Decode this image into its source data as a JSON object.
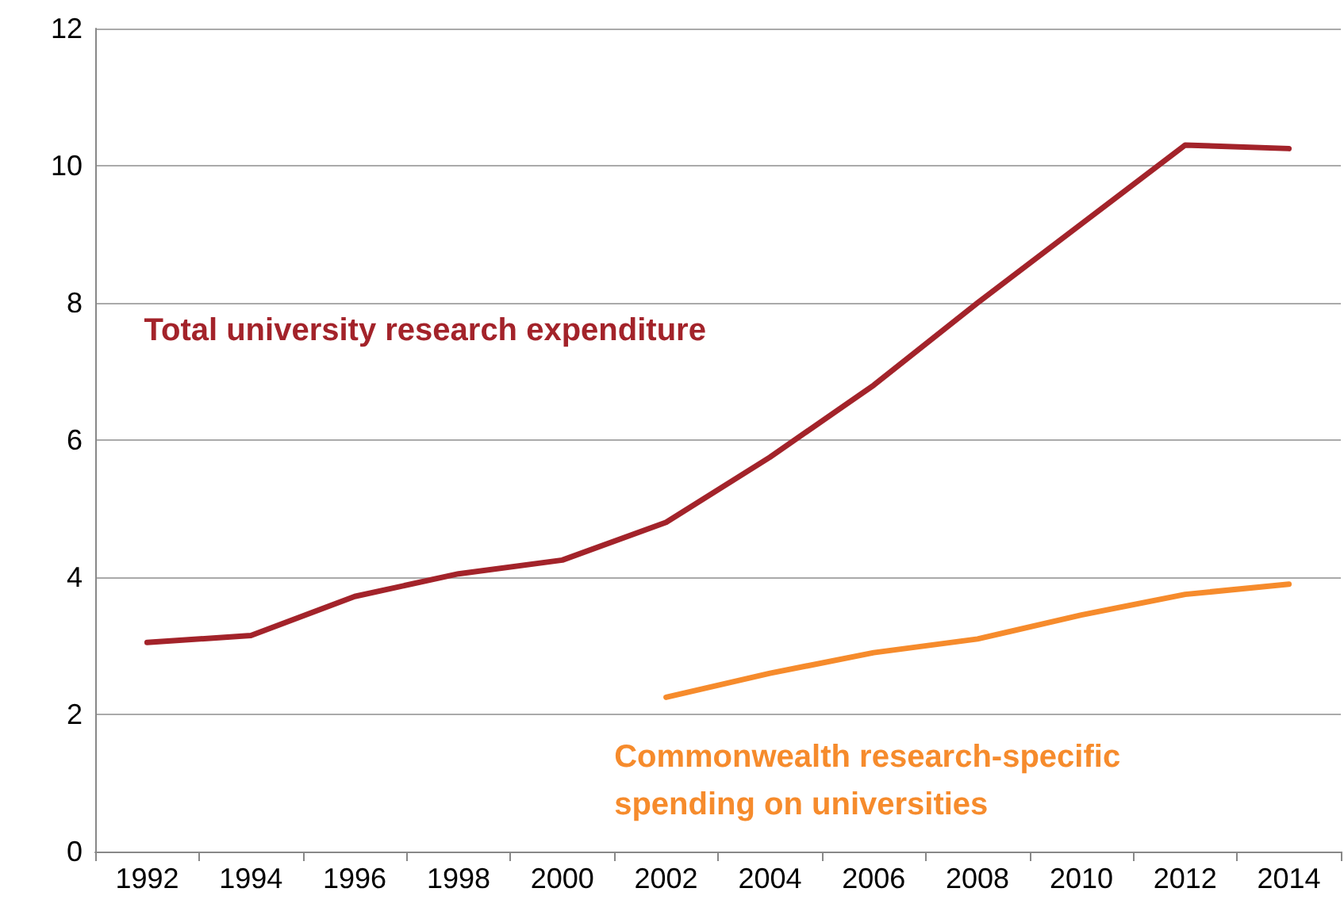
{
  "chart_data": {
    "type": "line",
    "categories": [
      "1992",
      "1994",
      "1996",
      "1998",
      "2000",
      "2002",
      "2004",
      "2006",
      "2008",
      "2010",
      "2012",
      "2014"
    ],
    "series": [
      {
        "name": "Total university research expenditure",
        "color": "#a3232a",
        "values": [
          3.05,
          3.15,
          3.72,
          4.05,
          4.25,
          4.8,
          5.75,
          6.8,
          8.0,
          9.15,
          10.3,
          10.25
        ]
      },
      {
        "name": "Commonwealth research-specific spending on universities",
        "color": "#f68b2c",
        "values": [
          null,
          null,
          null,
          null,
          null,
          2.25,
          2.6,
          2.9,
          3.1,
          3.45,
          3.75,
          3.9
        ]
      }
    ],
    "ylim": [
      0,
      12
    ],
    "yticks": [
      0,
      2,
      4,
      6,
      8,
      10,
      12
    ],
    "grid": "y",
    "legend": false,
    "marker": "none",
    "line_style": "solid"
  }
}
